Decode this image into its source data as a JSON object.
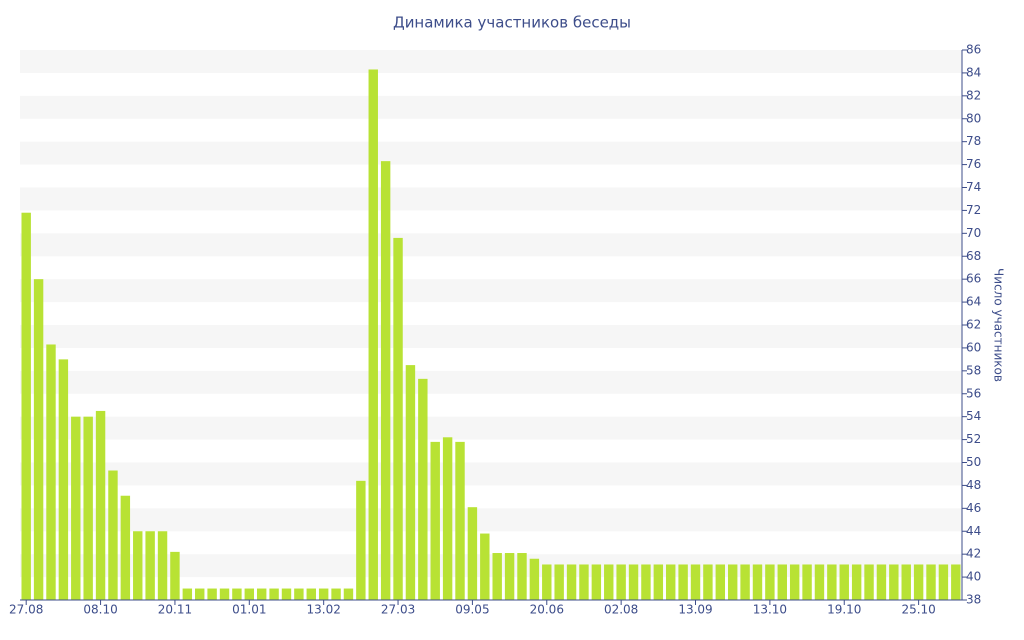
{
  "chart_data": {
    "type": "bar",
    "title": "Динамика участников беседы",
    "y_label": "Число участников",
    "categories": [
      "27.08",
      null,
      null,
      null,
      null,
      null,
      "08.10",
      null,
      null,
      null,
      null,
      null,
      "20.11",
      null,
      null,
      null,
      null,
      null,
      "01.01",
      null,
      null,
      null,
      null,
      null,
      "13.02",
      null,
      null,
      null,
      null,
      null,
      "27.03",
      null,
      null,
      null,
      null,
      null,
      "09.05",
      null,
      null,
      null,
      null,
      null,
      "20.06",
      null,
      null,
      null,
      null,
      null,
      "02.08",
      null,
      null,
      null,
      null,
      null,
      "13.09",
      null,
      null,
      null,
      null,
      null,
      "13.10",
      null,
      null,
      null,
      null,
      null,
      "19.10",
      null,
      null,
      null,
      null,
      null,
      "25.10",
      null,
      null,
      null
    ],
    "values": [
      71.8,
      66.0,
      60.3,
      59.0,
      54.0,
      54.0,
      54.5,
      49.3,
      47.1,
      44.0,
      44.0,
      44.0,
      42.2,
      39,
      39,
      39,
      39,
      39,
      39,
      39,
      39,
      39,
      39,
      39,
      39,
      39,
      39,
      48.4,
      84.3,
      76.3,
      69.6,
      58.5,
      57.3,
      51.8,
      52.2,
      51.8,
      46.1,
      43.8,
      42.1,
      42.1,
      42.1,
      41.6,
      41.1,
      41.1,
      41.1,
      41.1,
      41.1,
      41.1,
      41.1,
      41.1,
      41.1,
      41.1,
      41.1,
      41.1,
      41.1,
      41.1,
      41.1,
      41.1,
      41.1,
      41.1,
      41.1,
      41.1,
      41.1,
      41.1,
      41.1,
      41.1,
      41.1,
      41.1,
      41.1,
      41.1,
      41.1,
      41.1,
      41.1,
      41.1,
      41.1,
      41.1
    ],
    "color": "#b8e234",
    "ylim": [
      38,
      86
    ],
    "yticks": [
      38,
      40,
      42,
      44,
      46,
      48,
      50,
      52,
      54,
      56,
      58,
      60,
      62,
      64,
      66,
      68,
      70,
      72,
      74,
      76,
      78,
      80,
      82,
      84,
      86
    ],
    "y_axis_side": "right",
    "grid": "bands"
  }
}
